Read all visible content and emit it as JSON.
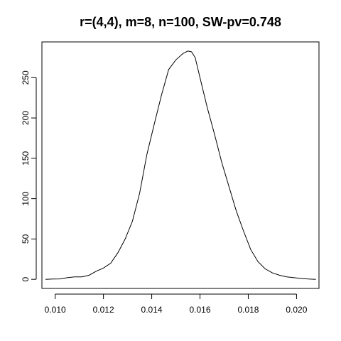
{
  "chart_data": {
    "type": "line",
    "title": "r=(4,4), m=8, n=100, SW-pv=0.748",
    "xlabel": "",
    "ylabel": "",
    "xlim": [
      0.00945,
      0.02093
    ],
    "ylim": [
      -11.3,
      294.3
    ],
    "x_ticks": [
      0.01,
      0.012,
      0.014,
      0.016,
      0.018,
      0.02
    ],
    "x_tick_labels": [
      "0.010",
      "0.012",
      "0.014",
      "0.016",
      "0.018",
      "0.020"
    ],
    "y_ticks": [
      0,
      50,
      100,
      150,
      200,
      250
    ],
    "y_tick_labels": [
      "0",
      "50",
      "100",
      "150",
      "200",
      "250"
    ],
    "grid": false,
    "line_color": "#000000",
    "series": [
      {
        "x": [
          0.0096,
          0.0099,
          0.0102,
          0.0105,
          0.0108,
          0.0111,
          0.0114,
          0.0117,
          0.012,
          0.0123,
          0.0126,
          0.0129,
          0.0132,
          0.0135,
          0.0138,
          0.0141,
          0.0144,
          0.0147,
          0.015,
          0.0153,
          0.0155,
          0.01565,
          0.0158,
          0.016,
          0.0163,
          0.0166,
          0.0169,
          0.0172,
          0.0175,
          0.0178,
          0.0181,
          0.0184,
          0.0187,
          0.019,
          0.0193,
          0.0196,
          0.0199,
          0.0202,
          0.0205,
          0.0208
        ],
        "y": [
          0,
          0.3,
          0.5,
          2,
          3,
          3,
          5,
          10,
          14,
          20,
          33,
          50,
          72,
          107,
          155,
          192,
          228,
          260,
          272,
          280,
          283,
          282,
          275,
          250,
          213,
          180,
          145,
          115,
          85,
          60,
          37,
          22,
          13,
          8,
          5,
          3,
          2,
          1,
          0.3,
          0
        ]
      }
    ]
  }
}
